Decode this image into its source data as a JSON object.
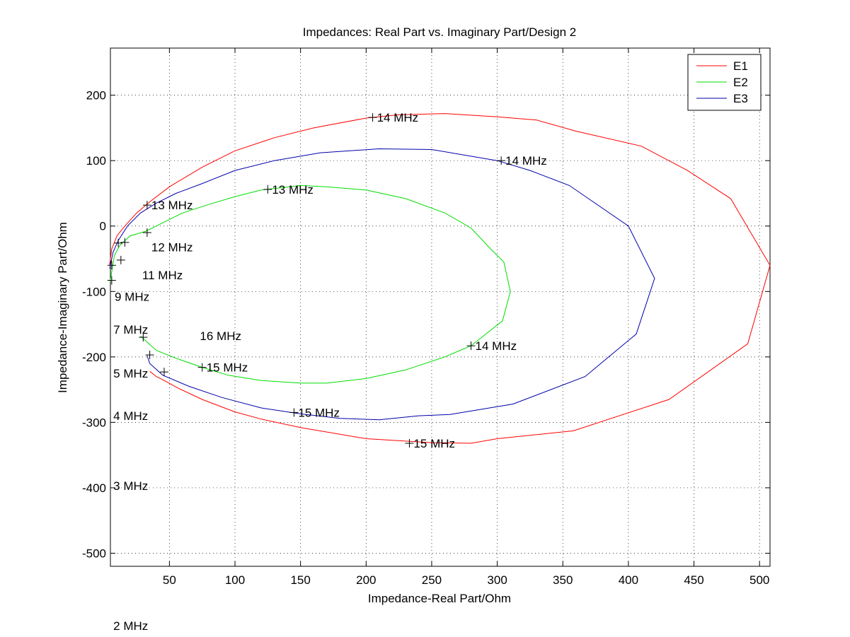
{
  "chart_data": {
    "type": "line",
    "title": "Impedances: Real Part vs. Imaginary Part/Design 2",
    "xlabel": "Impedance-Real Part/Ohm",
    "ylabel": "Impedance-Imaginary Part/Ohm",
    "xlim": [
      5,
      508
    ],
    "ylim": [
      -520,
      272
    ],
    "xticks": [
      50,
      100,
      150,
      200,
      250,
      300,
      350,
      400,
      450,
      500
    ],
    "yticks": [
      200,
      100,
      0,
      -100,
      -200,
      -300,
      -400,
      -500
    ],
    "grid": true,
    "legend_position": "top-right",
    "series": [
      {
        "name": "E1",
        "color": "#ff0000",
        "points": [
          [
            4.4,
            -59
          ],
          [
            6,
            -35
          ],
          [
            10,
            -15
          ],
          [
            16,
            0
          ],
          [
            25,
            20
          ],
          [
            35,
            37
          ],
          [
            50,
            60
          ],
          [
            75,
            90
          ],
          [
            100,
            115
          ],
          [
            130,
            135
          ],
          [
            160,
            150
          ],
          [
            200,
            165
          ],
          [
            225,
            170
          ],
          [
            260,
            172
          ],
          [
            300,
            167
          ],
          [
            330,
            162
          ],
          [
            360,
            145
          ],
          [
            410,
            122
          ],
          [
            445,
            85
          ],
          [
            478,
            42
          ],
          [
            508,
            -60
          ],
          [
            491,
            -180
          ],
          [
            431,
            -265
          ],
          [
            358,
            -313
          ],
          [
            300,
            -325
          ],
          [
            280,
            -332
          ],
          [
            250,
            -331
          ],
          [
            200,
            -325
          ],
          [
            150,
            -308
          ],
          [
            120,
            -295
          ],
          [
            100,
            -284
          ],
          [
            75,
            -265
          ],
          [
            57,
            -248
          ],
          [
            45,
            -235
          ],
          [
            40,
            -230
          ],
          [
            35,
            -222
          ]
        ]
      },
      {
        "name": "E2",
        "color": "#00dd00",
        "points": [
          [
            4.8,
            -85
          ],
          [
            8,
            -45
          ],
          [
            12,
            -30
          ],
          [
            20,
            -15
          ],
          [
            32,
            -8
          ],
          [
            45,
            5
          ],
          [
            60,
            20
          ],
          [
            80,
            33
          ],
          [
            100,
            45
          ],
          [
            120,
            55
          ],
          [
            150,
            62
          ],
          [
            170,
            60
          ],
          [
            200,
            55
          ],
          [
            230,
            42
          ],
          [
            260,
            20
          ],
          [
            280,
            -3
          ],
          [
            295,
            -35
          ],
          [
            305,
            -55
          ],
          [
            310,
            -100
          ],
          [
            304,
            -145
          ],
          [
            280,
            -183
          ],
          [
            260,
            -200
          ],
          [
            230,
            -220
          ],
          [
            200,
            -233
          ],
          [
            170,
            -240
          ],
          [
            150,
            -240
          ],
          [
            120,
            -236
          ],
          [
            95,
            -228
          ],
          [
            75,
            -216
          ],
          [
            55,
            -202
          ],
          [
            40,
            -190
          ],
          [
            30,
            -172
          ],
          [
            28,
            -168
          ]
        ]
      },
      {
        "name": "E3",
        "color": "#0000aa",
        "points": [
          [
            4.5,
            -65
          ],
          [
            7,
            -40
          ],
          [
            11,
            -22
          ],
          [
            18,
            0
          ],
          [
            28,
            20
          ],
          [
            40,
            35
          ],
          [
            55,
            50
          ],
          [
            75,
            65
          ],
          [
            100,
            85
          ],
          [
            130,
            100
          ],
          [
            165,
            112
          ],
          [
            210,
            118
          ],
          [
            250,
            117
          ],
          [
            300,
            100
          ],
          [
            325,
            85
          ],
          [
            355,
            62
          ],
          [
            400,
            0
          ],
          [
            420,
            -80
          ],
          [
            406,
            -165
          ],
          [
            367,
            -230
          ],
          [
            312,
            -272
          ],
          [
            264,
            -288
          ],
          [
            240,
            -290
          ],
          [
            210,
            -296
          ],
          [
            180,
            -294
          ],
          [
            150,
            -287
          ],
          [
            120,
            -278
          ],
          [
            90,
            -262
          ],
          [
            65,
            -245
          ],
          [
            45,
            -228
          ],
          [
            35,
            -210
          ],
          [
            33,
            -198
          ]
        ]
      }
    ],
    "markers": [
      {
        "x": 205,
        "y": 166,
        "label": "14 MHz"
      },
      {
        "x": 303,
        "y": 100,
        "label": "14 MHz"
      },
      {
        "x": 125,
        "y": 56,
        "label": "13 MHz"
      },
      {
        "x": 33,
        "y": 32,
        "label": "13 MHz"
      },
      {
        "x": 33,
        "y": -10,
        "label": "12 MHz"
      },
      {
        "x": 11,
        "y": -26,
        "label": "11 MHz"
      },
      {
        "x": 16,
        "y": -25,
        "label": ""
      },
      {
        "x": 13,
        "y": -52,
        "label": "9 MHz"
      },
      {
        "x": 6,
        "y": -60,
        "label": "7 MHz"
      },
      {
        "x": 6,
        "y": -83,
        "label": "5 MHz"
      },
      {
        "x": 30,
        "y": -170,
        "label": "16 MHz"
      },
      {
        "x": 35,
        "y": -197,
        "label": ""
      },
      {
        "x": 46,
        "y": -223,
        "label": ""
      },
      {
        "x": 75,
        "y": -216,
        "label": "15 MHz"
      },
      {
        "x": 145,
        "y": -285,
        "label": "15 MHz"
      },
      {
        "x": 233,
        "y": -332,
        "label": "15 MHz"
      },
      {
        "x": 280,
        "y": -183,
        "label": "14 MHz"
      }
    ],
    "annotations": [
      {
        "x": 125,
        "y": 56,
        "text": "13 MHz"
      },
      {
        "x": 205,
        "y": 166,
        "text": "14 MHz"
      },
      {
        "x": 303,
        "y": 100,
        "text": "14 MHz"
      },
      {
        "x": 33,
        "y": 32,
        "text": "13 MHz"
      },
      {
        "x": 33,
        "y": -32,
        "text": "12 MHz"
      },
      {
        "x": 26,
        "y": -75,
        "text": "11 MHz"
      },
      {
        "x": 5,
        "y": -108,
        "text": "9 MHz"
      },
      {
        "x": 4,
        "y": -158,
        "text": "7 MHz"
      },
      {
        "x": 70,
        "y": -168,
        "text": "16 MHz"
      },
      {
        "x": 75,
        "y": -216,
        "text": "15 MHz"
      },
      {
        "x": 4,
        "y": -225,
        "text": "5 MHz"
      },
      {
        "x": 280,
        "y": -183,
        "text": "14 MHz"
      },
      {
        "x": 145,
        "y": -285,
        "text": "15 MHz"
      },
      {
        "x": 4,
        "y": -290,
        "text": "4 MHz"
      },
      {
        "x": 233,
        "y": -332,
        "text": "15 MHz"
      },
      {
        "x": 4,
        "y": -397,
        "text": "3 MHz"
      },
      {
        "x": 4,
        "y": -611,
        "text": "2 MHz"
      }
    ]
  }
}
